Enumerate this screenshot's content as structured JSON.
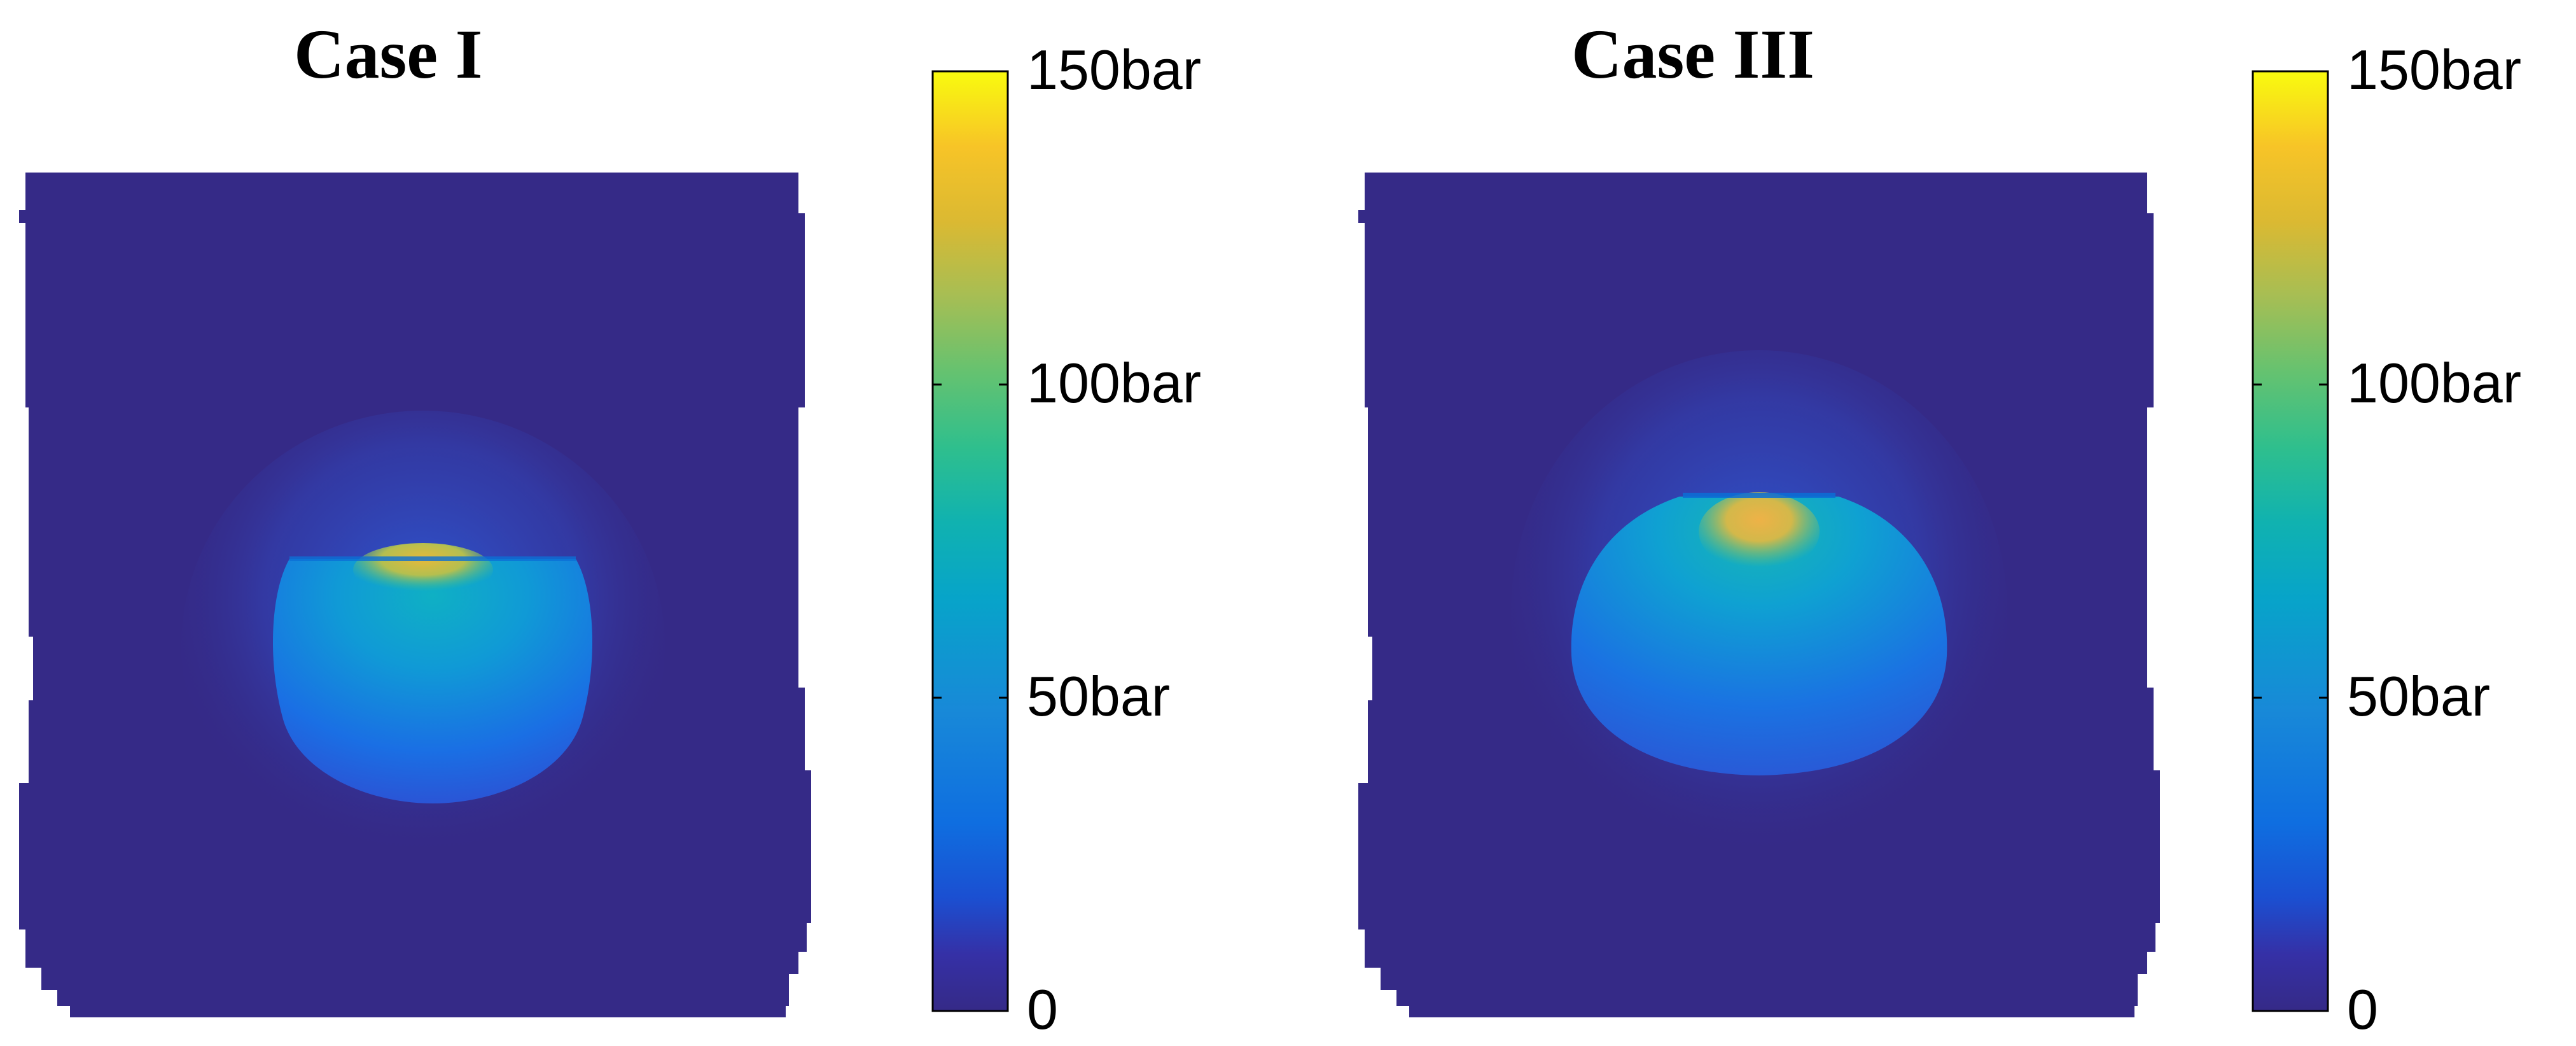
{
  "chart_data": [
    {
      "type": "heatmap",
      "title": "Case I",
      "colorbar": {
        "range": [
          0,
          150
        ],
        "unit": "bar",
        "ticks": [
          {
            "value": 0,
            "label": "0"
          },
          {
            "value": 50,
            "label": "50bar"
          },
          {
            "value": 100,
            "label": "100bar"
          },
          {
            "value": 150,
            "label": "150bar"
          }
        ],
        "colormap": "parula"
      },
      "background_value": 0,
      "peak_value": 118,
      "pressure_front_value": 75,
      "bulk_value": 45
    },
    {
      "type": "heatmap",
      "title": "Case III",
      "colorbar": {
        "range": [
          0,
          150
        ],
        "unit": "bar",
        "ticks": [
          {
            "value": 0,
            "label": "0"
          },
          {
            "value": 50,
            "label": "50bar"
          },
          {
            "value": 100,
            "label": "100bar"
          },
          {
            "value": 150,
            "label": "150bar"
          }
        ],
        "colormap": "parula"
      },
      "background_value": 0,
      "peak_value": 125,
      "pressure_front_value": 80,
      "bulk_value": 42
    }
  ]
}
